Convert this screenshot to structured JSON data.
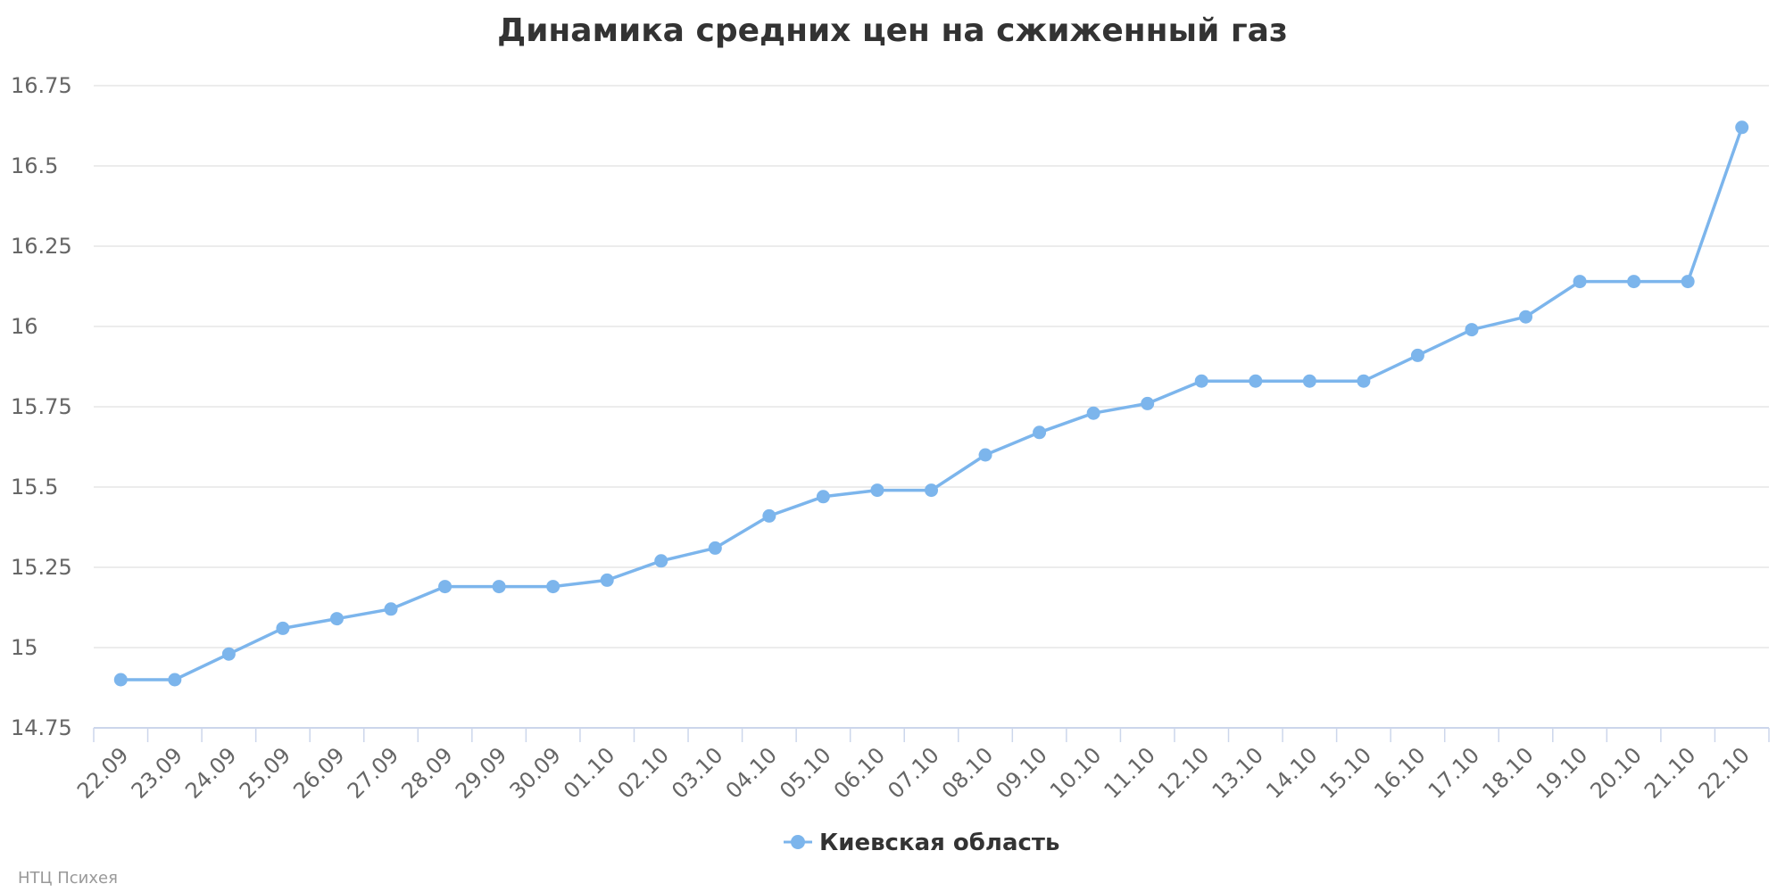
{
  "chart_data": {
    "type": "line",
    "title": "Динамика средних цен на сжиженный газ",
    "xlabel": "",
    "ylabel": "",
    "categories": [
      "22.09",
      "23.09",
      "24.09",
      "25.09",
      "26.09",
      "27.09",
      "28.09",
      "29.09",
      "30.09",
      "01.10",
      "02.10",
      "03.10",
      "04.10",
      "05.10",
      "06.10",
      "07.10",
      "08.10",
      "09.10",
      "10.10",
      "11.10",
      "12.10",
      "13.10",
      "14.10",
      "15.10",
      "16.10",
      "17.10",
      "18.10",
      "19.10",
      "20.10",
      "21.10",
      "22.10"
    ],
    "series": [
      {
        "name": "Киевская область",
        "color": "#7cb5ec",
        "values": [
          14.9,
          14.9,
          14.98,
          15.06,
          15.09,
          15.12,
          15.19,
          15.19,
          15.19,
          15.21,
          15.27,
          15.31,
          15.41,
          15.47,
          15.49,
          15.49,
          15.6,
          15.67,
          15.73,
          15.76,
          15.83,
          15.83,
          15.83,
          15.83,
          15.91,
          15.99,
          16.03,
          16.14,
          16.14,
          16.14,
          16.62
        ]
      }
    ],
    "ylim": [
      14.75,
      16.75
    ],
    "yticks": [
      14.75,
      15,
      15.25,
      15.5,
      15.75,
      16,
      16.25,
      16.5,
      16.75
    ],
    "ytick_labels": [
      "14.75",
      "15",
      "15.25",
      "15.5",
      "15.75",
      "16",
      "16.25",
      "16.5",
      "16.75"
    ],
    "grid": true,
    "legend_position": "bottom-center"
  },
  "credit": "НТЦ Психея"
}
